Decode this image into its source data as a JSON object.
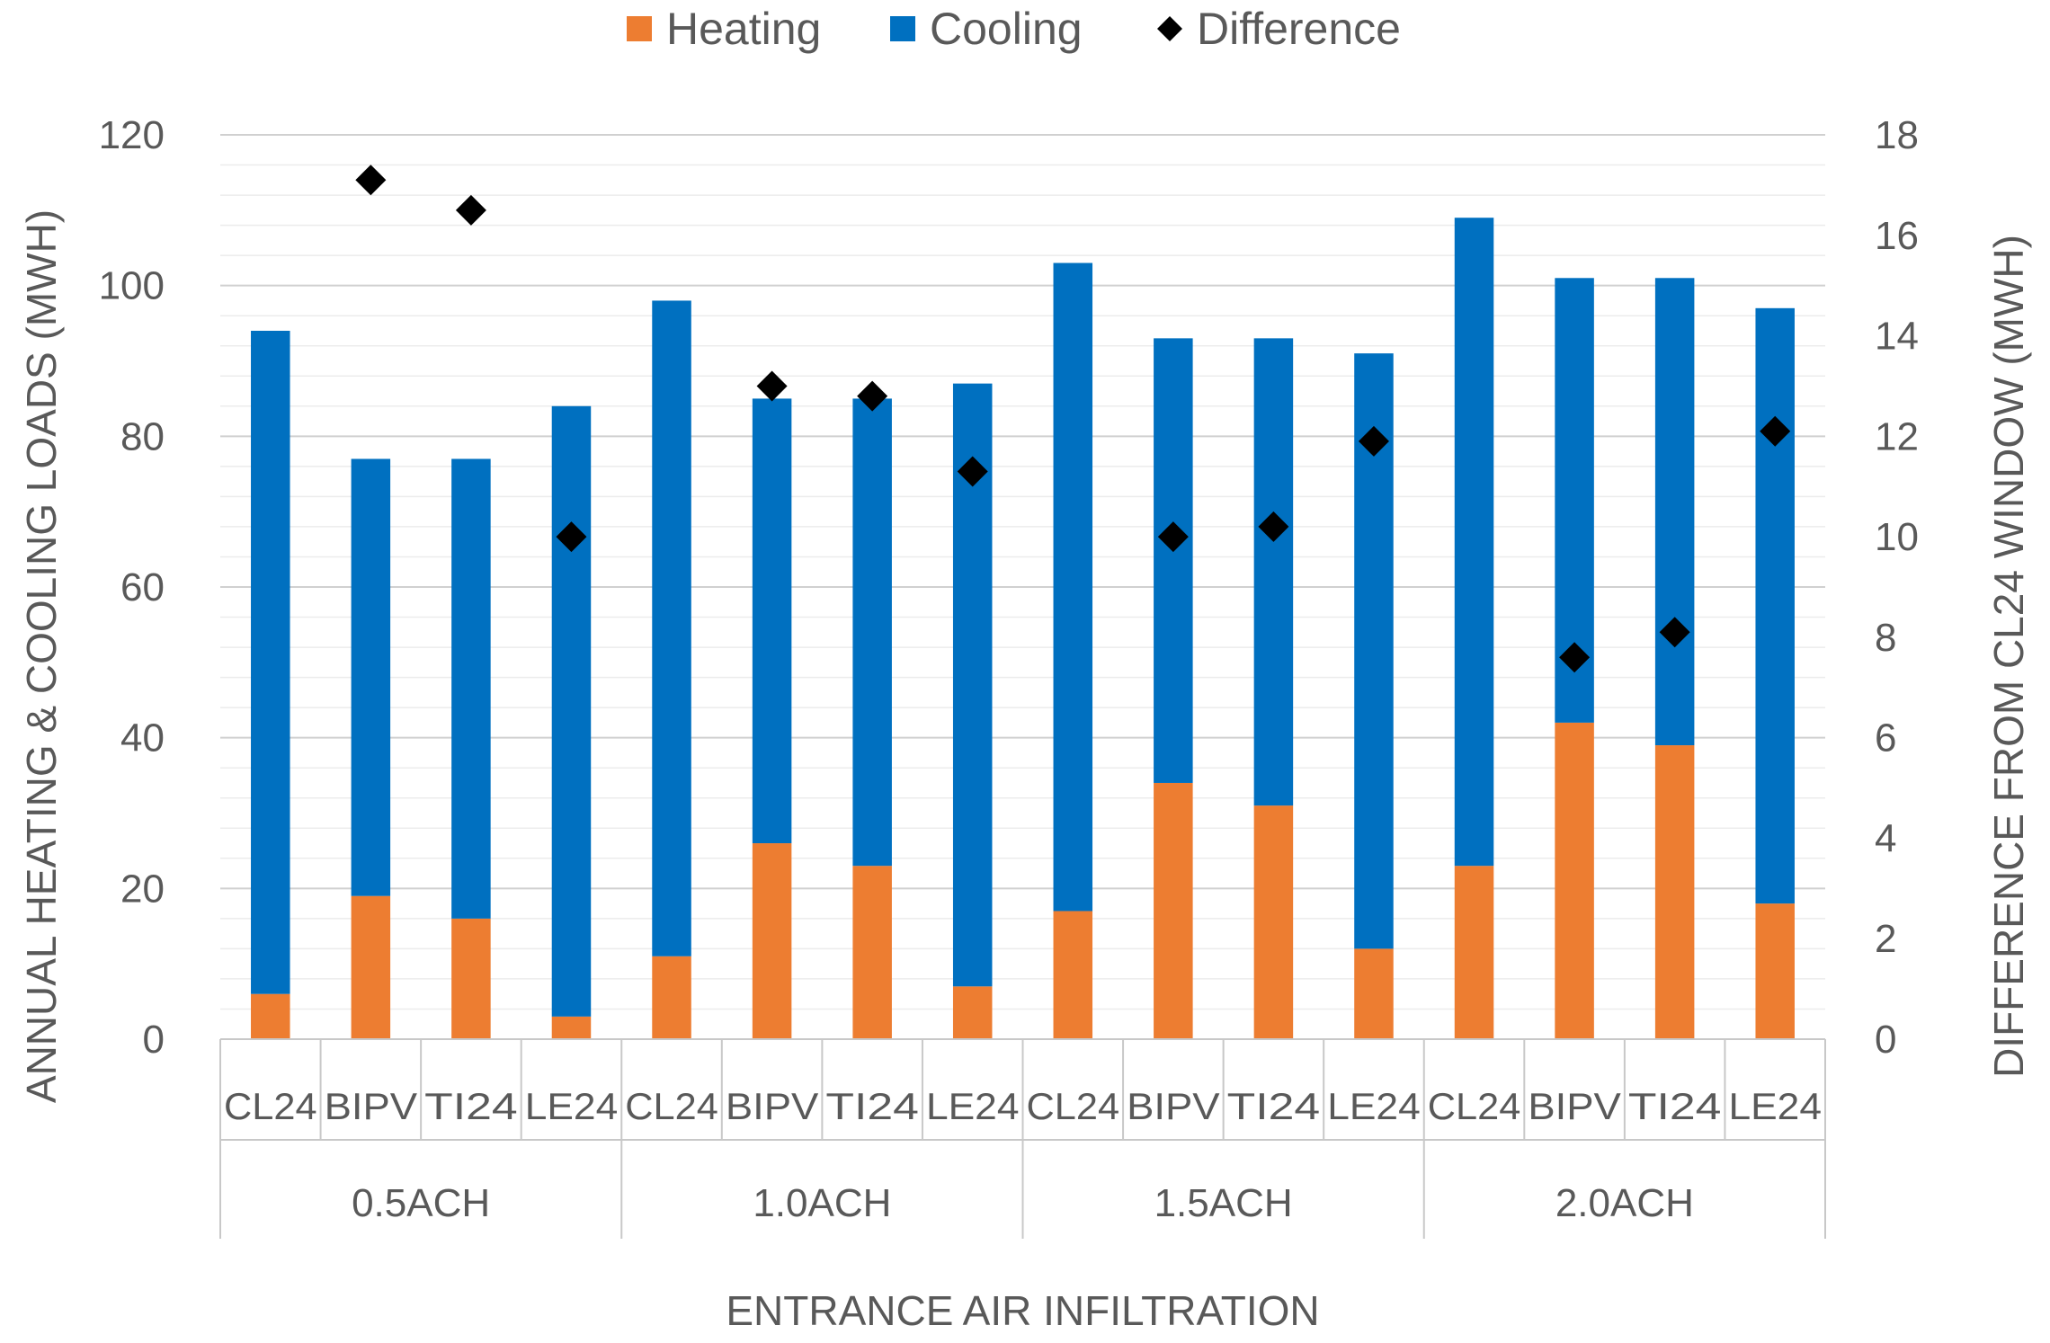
{
  "chart_data": {
    "type": "bar",
    "stacked": true,
    "categories": [
      "CL24",
      "BIPV",
      "TI24",
      "LE24",
      "CL24",
      "BIPV",
      "TI24",
      "LE24",
      "CL24",
      "BIPV",
      "TI24",
      "LE24",
      "CL24",
      "BIPV",
      "TI24",
      "LE24"
    ],
    "groups": [
      "0.5ACH",
      "1.0ACH",
      "1.5ACH",
      "2.0ACH"
    ],
    "series": [
      {
        "name": "Heating",
        "axis": "left",
        "kind": "bar",
        "color": "#ED7D31",
        "values": [
          6,
          19,
          16,
          3,
          11,
          26,
          23,
          7,
          17,
          34,
          31,
          12,
          23,
          42,
          39,
          18
        ]
      },
      {
        "name": "Cooling",
        "axis": "left",
        "kind": "bar",
        "color": "#0070C0",
        "values": [
          88,
          58,
          61,
          81,
          87,
          59,
          62,
          80,
          86,
          59,
          62,
          79,
          86,
          59,
          62,
          79
        ]
      },
      {
        "name": "Difference",
        "axis": "right",
        "kind": "marker",
        "marker": "diamond",
        "color": "#000000",
        "values": [
          null,
          17.1,
          16.5,
          10.0,
          null,
          13.0,
          12.8,
          11.3,
          null,
          10.0,
          10.2,
          11.9,
          null,
          7.6,
          8.1,
          12.1
        ]
      }
    ],
    "legend": [
      "Heating",
      "Cooling",
      "Difference"
    ],
    "legend_position": "top-center",
    "ylabel": "ANNUAL HEATING & COOLING LOADS (MWH)",
    "y2label": "DIFFERENCE FROM CL24 WINDOW (MWH)",
    "xlabel": "ENTRANCE AIR INFILTRATION",
    "ylim": [
      0,
      120
    ],
    "yticks": [
      0,
      20,
      40,
      60,
      80,
      100,
      120
    ],
    "y2lim": [
      0,
      18
    ],
    "y2ticks": [
      0,
      2,
      4,
      6,
      8,
      10,
      12,
      14,
      16,
      18
    ],
    "grid": true
  }
}
